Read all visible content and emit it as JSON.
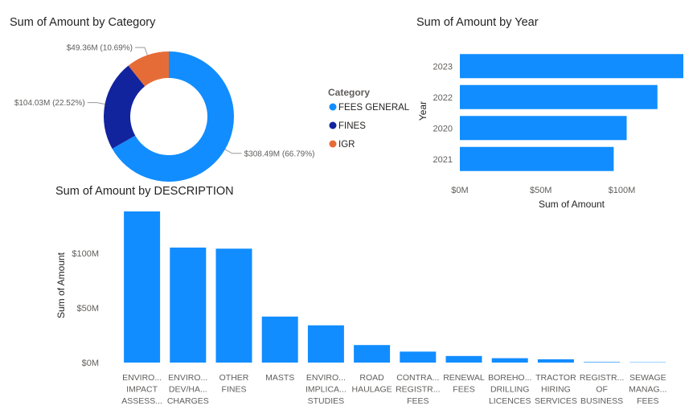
{
  "colors": {
    "fees_general": "#118DFF",
    "fines": "#12239E",
    "igr": "#E66C37",
    "axis_text": "#605E5C",
    "title_text": "#252423",
    "leader": "#999999"
  },
  "chart_data": [
    {
      "type": "pie",
      "title": "Sum of Amount by Category",
      "legend_title": "Category",
      "legend_placement": "right",
      "slices": [
        {
          "label": "FEES GENERAL",
          "value": 308.49,
          "data_label": "$308.49M (66.79%)",
          "color": "#118DFF"
        },
        {
          "label": "FINES",
          "value": 104.03,
          "data_label": "$104.03M (22.52%)",
          "color": "#12239E"
        },
        {
          "label": "IGR",
          "value": 49.36,
          "data_label": "$49.36M (10.69%)",
          "color": "#E66C37"
        }
      ]
    },
    {
      "type": "bar",
      "orientation": "horizontal",
      "title": "Sum of Amount by Year",
      "xlabel": "Sum of Amount",
      "ylabel": "Year",
      "categories": [
        "2023",
        "2022",
        "2020",
        "2021"
      ],
      "values": [
        138,
        122,
        103,
        95
      ],
      "xlim": [
        0,
        138
      ],
      "xticks": [
        0,
        50,
        100
      ],
      "xtick_labels": [
        "$0M",
        "$50M",
        "$100M"
      ],
      "grid": false,
      "color": "#118DFF"
    },
    {
      "type": "bar",
      "orientation": "vertical",
      "title": "Sum of Amount by DESCRIPTION",
      "xlabel": "",
      "ylabel": "Sum of Amount",
      "categories": [
        [
          "ENVIRO...",
          "IMPACT",
          "ASSESS..."
        ],
        [
          "ENVIRO...",
          "DEV/HA...",
          "CHARGES"
        ],
        [
          "OTHER",
          "FINES"
        ],
        [
          "MASTS"
        ],
        [
          "ENVIRO...",
          "IMPLICA...",
          "STUDIES"
        ],
        [
          "ROAD",
          "HAULAGE"
        ],
        [
          "CONTRA...",
          "REGISTR...",
          "FEES"
        ],
        [
          "RENEWAL",
          "FEES"
        ],
        [
          "BOREHO...",
          "DRILLING",
          "LICENCES"
        ],
        [
          "TRACTOR",
          "HIRING",
          "SERVICES"
        ],
        [
          "REGISTR...",
          "OF",
          "BUSINESS"
        ],
        [
          "SEWAGE",
          "MANAG...",
          "FEES"
        ]
      ],
      "values": [
        138,
        105,
        104,
        42,
        34,
        16,
        10,
        6,
        4,
        3,
        0.5,
        0.3
      ],
      "ylim": [
        0,
        138
      ],
      "yticks": [
        0,
        50,
        100
      ],
      "ytick_labels": [
        "$0M",
        "$50M",
        "$100M"
      ],
      "grid": false,
      "color": "#118DFF"
    }
  ]
}
